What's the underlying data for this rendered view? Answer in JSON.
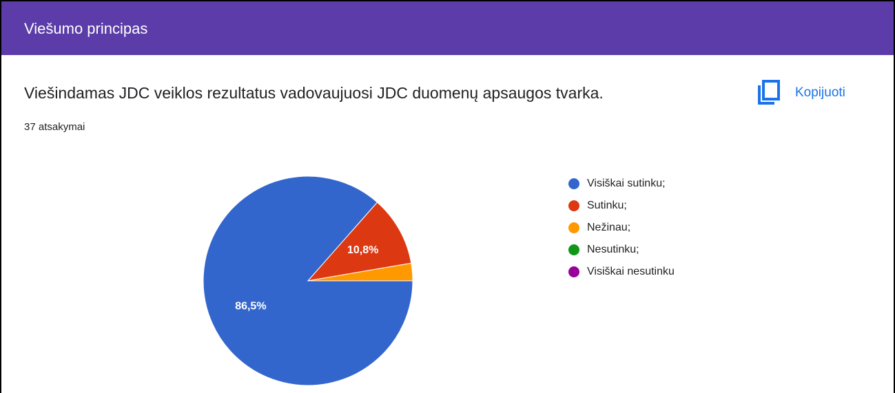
{
  "header": {
    "title": "Viešumo principas"
  },
  "question": {
    "text": "Viešindamas JDC veiklos rezultatus vadovaujuosi JDC duomenų apsaugos tvarka.",
    "responses": "37 atsakymai",
    "copy_button": "Kopijuoti"
  },
  "chart_data": {
    "type": "pie",
    "categories": [
      "Visiškai sutinku;",
      "Sutinku;",
      "Nežinau;",
      "Nesutinku;",
      "Visiškai nesutinku"
    ],
    "values": [
      86.5,
      10.8,
      2.7,
      0,
      0
    ],
    "value_labels": [
      "86,5%",
      "10,8%",
      null,
      null,
      null
    ],
    "colors": [
      "#3366cc",
      "#dc3912",
      "#ff9900",
      "#109618",
      "#990099"
    ],
    "legend": "right"
  }
}
